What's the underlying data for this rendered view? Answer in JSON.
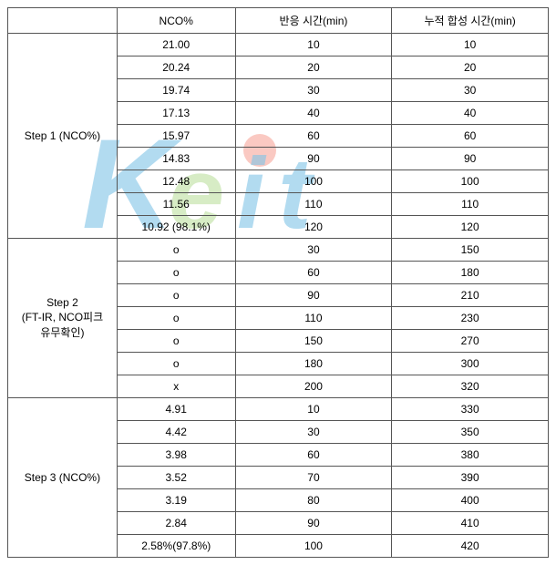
{
  "table": {
    "headers": {
      "blank": "",
      "nco": "NCO%",
      "reaction_time": "반응 시간(min)",
      "cumulative_time": "누적 합성 시간(min)"
    },
    "sections": [
      {
        "label": "Step 1 (NCO%)",
        "rows": [
          {
            "nco": "21.00",
            "rt": "10",
            "ct": "10"
          },
          {
            "nco": "20.24",
            "rt": "20",
            "ct": "20"
          },
          {
            "nco": "19.74",
            "rt": "30",
            "ct": "30"
          },
          {
            "nco": "17.13",
            "rt": "40",
            "ct": "40"
          },
          {
            "nco": "15.97",
            "rt": "60",
            "ct": "60"
          },
          {
            "nco": "14.83",
            "rt": "90",
            "ct": "90"
          },
          {
            "nco": "12.48",
            "rt": "100",
            "ct": "100"
          },
          {
            "nco": "11.56",
            "rt": "110",
            "ct": "110"
          },
          {
            "nco": "10.92 (98.1%)",
            "rt": "120",
            "ct": "120"
          }
        ]
      },
      {
        "label": "Step 2\n(FT-IR, NCO피크\n유무확인)",
        "rows": [
          {
            "nco": "o",
            "rt": "30",
            "ct": "150"
          },
          {
            "nco": "o",
            "rt": "60",
            "ct": "180"
          },
          {
            "nco": "o",
            "rt": "90",
            "ct": "210"
          },
          {
            "nco": "o",
            "rt": "110",
            "ct": "230"
          },
          {
            "nco": "o",
            "rt": "150",
            "ct": "270"
          },
          {
            "nco": "o",
            "rt": "180",
            "ct": "300"
          },
          {
            "nco": "x",
            "rt": "200",
            "ct": "320"
          }
        ]
      },
      {
        "label": "Step 3 (NCO%)",
        "rows": [
          {
            "nco": "4.91",
            "rt": "10",
            "ct": "330"
          },
          {
            "nco": "4.42",
            "rt": "30",
            "ct": "350"
          },
          {
            "nco": "3.98",
            "rt": "60",
            "ct": "380"
          },
          {
            "nco": "3.52",
            "rt": "70",
            "ct": "390"
          },
          {
            "nco": "3.19",
            "rt": "80",
            "ct": "400"
          },
          {
            "nco": "2.84",
            "rt": "90",
            "ct": "410"
          },
          {
            "nco": "2.58%(97.8%)",
            "rt": "100",
            "ct": "420"
          }
        ]
      }
    ]
  },
  "styles": {
    "border_color": "#555555",
    "text_color": "#000000",
    "font_size": 12,
    "watermark": {
      "text": "Keit",
      "colors": {
        "k": "#0089cf",
        "e": "#7ac142",
        "it": "#0089cf",
        "dot": "#f04e37"
      }
    }
  }
}
